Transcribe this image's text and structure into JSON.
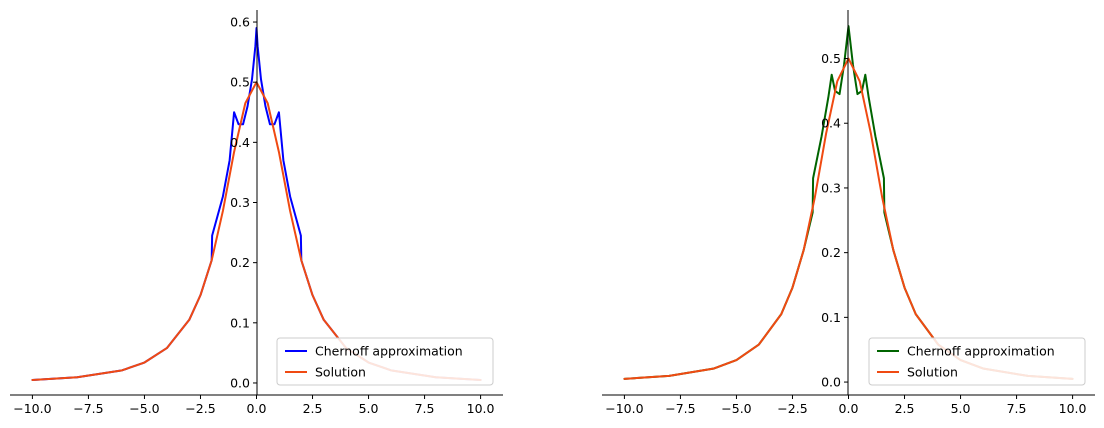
{
  "chart_data": [
    {
      "type": "line",
      "xlim": [
        -11,
        11
      ],
      "ylim": [
        -0.02,
        0.62
      ],
      "xticks": [
        -10,
        -7.5,
        -5,
        -2.5,
        0,
        2.5,
        5,
        7.5,
        10
      ],
      "xtick_labels": [
        "−10.0",
        "−7.5",
        "−5.0",
        "−2.5",
        "0.0",
        "2.5",
        "5.0",
        "7.5",
        "10.0"
      ],
      "yticks": [
        0.0,
        0.1,
        0.2,
        0.3,
        0.4,
        0.5,
        0.6
      ],
      "ytick_labels": [
        "0.0",
        "0.1",
        "0.2",
        "0.3",
        "0.4",
        "0.5",
        "0.6"
      ],
      "grid": false,
      "legend_position": "lower-right",
      "series": [
        {
          "name": "Chernoff approximation",
          "color": "#0000ff",
          "x": [
            -10,
            -8,
            -6,
            -5,
            -4,
            -3,
            -2.5,
            -2.0,
            -1.98,
            -1.5,
            -1.2,
            -1.0,
            -0.8,
            -0.6,
            -0.4,
            -0.2,
            -0.05,
            0,
            0.05,
            0.2,
            0.4,
            0.6,
            0.8,
            1.0,
            1.2,
            1.5,
            1.98,
            2.0,
            2.5,
            3,
            4,
            5,
            6,
            8,
            10
          ],
          "y": [
            0.005,
            0.0095,
            0.021,
            0.034,
            0.058,
            0.105,
            0.146,
            0.204,
            0.245,
            0.31,
            0.37,
            0.45,
            0.43,
            0.43,
            0.46,
            0.505,
            0.56,
            0.59,
            0.56,
            0.505,
            0.46,
            0.43,
            0.43,
            0.45,
            0.37,
            0.31,
            0.245,
            0.204,
            0.146,
            0.105,
            0.058,
            0.034,
            0.021,
            0.0095,
            0.005
          ]
        },
        {
          "name": "Solution",
          "color": "#f04a12",
          "x": [
            -10,
            -8,
            -6,
            -5,
            -4,
            -3,
            -2.5,
            -2,
            -1.5,
            -1,
            -0.5,
            0,
            0.5,
            1,
            1.5,
            2,
            2.5,
            3,
            4,
            5,
            6,
            8,
            10
          ],
          "y": [
            0.005,
            0.0095,
            0.021,
            0.034,
            0.058,
            0.105,
            0.146,
            0.204,
            0.286,
            0.384,
            0.465,
            0.5,
            0.465,
            0.384,
            0.286,
            0.204,
            0.146,
            0.105,
            0.058,
            0.034,
            0.021,
            0.0095,
            0.005
          ]
        }
      ]
    },
    {
      "type": "line",
      "xlim": [
        -11,
        11
      ],
      "ylim": [
        -0.02,
        0.575
      ],
      "xticks": [
        -10,
        -7.5,
        -5,
        -2.5,
        0,
        2.5,
        5,
        7.5,
        10
      ],
      "xtick_labels": [
        "−10.0",
        "−7.5",
        "−5.0",
        "−2.5",
        "0.0",
        "2.5",
        "5.0",
        "7.5",
        "10.0"
      ],
      "yticks": [
        0.0,
        0.1,
        0.2,
        0.3,
        0.4,
        0.5
      ],
      "ytick_labels": [
        "0.0",
        "0.1",
        "0.2",
        "0.3",
        "0.4",
        "0.5"
      ],
      "grid": false,
      "legend_position": "lower-right",
      "series": [
        {
          "name": "Chernoff approximation",
          "color": "#006400",
          "x": [
            -10,
            -8,
            -6,
            -5,
            -4,
            -3,
            -2.5,
            -2.0,
            -1.6,
            -1.58,
            -1.2,
            -0.9,
            -0.75,
            -0.6,
            -0.4,
            -0.2,
            -0.05,
            0,
            0.05,
            0.2,
            0.4,
            0.6,
            0.75,
            0.9,
            1.2,
            1.58,
            1.6,
            2.0,
            2.5,
            3,
            4,
            5,
            6,
            8,
            10
          ],
          "y": [
            0.005,
            0.0095,
            0.021,
            0.034,
            0.058,
            0.105,
            0.146,
            0.204,
            0.262,
            0.315,
            0.38,
            0.44,
            0.475,
            0.45,
            0.445,
            0.49,
            0.535,
            0.55,
            0.535,
            0.49,
            0.445,
            0.45,
            0.475,
            0.44,
            0.38,
            0.315,
            0.262,
            0.204,
            0.146,
            0.105,
            0.058,
            0.034,
            0.021,
            0.0095,
            0.005
          ]
        },
        {
          "name": "Solution",
          "color": "#f04a12",
          "x": [
            -10,
            -8,
            -6,
            -5,
            -4,
            -3,
            -2.5,
            -2,
            -1.5,
            -1,
            -0.5,
            0,
            0.5,
            1,
            1.5,
            2,
            2.5,
            3,
            4,
            5,
            6,
            8,
            10
          ],
          "y": [
            0.005,
            0.0095,
            0.021,
            0.034,
            0.058,
            0.105,
            0.146,
            0.204,
            0.286,
            0.384,
            0.465,
            0.5,
            0.465,
            0.384,
            0.286,
            0.204,
            0.146,
            0.105,
            0.058,
            0.034,
            0.021,
            0.0095,
            0.005
          ]
        }
      ]
    }
  ]
}
